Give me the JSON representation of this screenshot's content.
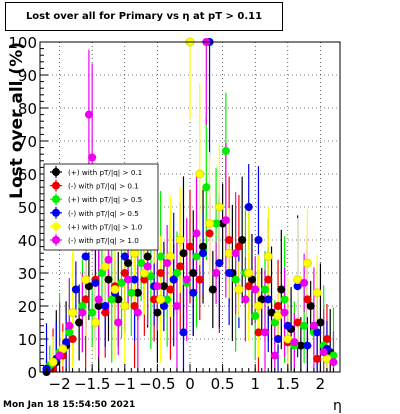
{
  "chart_data": {
    "type": "scatter",
    "title": "Lost over all for Primary vs  η at pT > 0.11",
    "xlabel": "η",
    "ylabel": "Lost over all (%)",
    "xlim": [
      -2.3,
      2.3
    ],
    "ylim": [
      0,
      100
    ],
    "x_ticks": [
      -2,
      -1.5,
      -1,
      -0.5,
      0,
      0.5,
      1,
      1.5,
      2
    ],
    "x_tick_labels": [
      "−2",
      "−1.5",
      "−1",
      "−0.5",
      "0",
      "0.5",
      "1",
      "1.5",
      "2"
    ],
    "y_ticks": [
      0,
      10,
      20,
      30,
      40,
      50,
      60,
      70,
      80,
      90,
      100
    ],
    "grid": true,
    "legend_position": "left-middle",
    "series": [
      {
        "name": "(+) with pT/|q| > 0.1",
        "color": "#000000",
        "points": [
          [
            -2.2,
            0
          ],
          [
            -2.05,
            3
          ],
          [
            -1.9,
            8
          ],
          [
            -1.7,
            15
          ],
          [
            -1.55,
            26
          ],
          [
            -1.4,
            20
          ],
          [
            -1.25,
            28
          ],
          [
            -1.1,
            22
          ],
          [
            -0.95,
            33
          ],
          [
            -0.8,
            24
          ],
          [
            -0.65,
            35
          ],
          [
            -0.5,
            18
          ],
          [
            -0.4,
            26
          ],
          [
            -0.25,
            28
          ],
          [
            -0.1,
            36
          ],
          [
            0.05,
            30
          ],
          [
            0.2,
            38
          ],
          [
            0.35,
            25
          ],
          [
            0.5,
            45
          ],
          [
            0.65,
            30
          ],
          [
            0.8,
            40
          ],
          [
            0.95,
            28
          ],
          [
            1.1,
            22
          ],
          [
            1.25,
            18
          ],
          [
            1.4,
            25
          ],
          [
            1.55,
            13
          ],
          [
            1.7,
            8
          ],
          [
            1.85,
            20
          ],
          [
            2.0,
            15
          ],
          [
            2.15,
            6
          ]
        ]
      },
      {
        "name": "(-) with pT/|q| > 0.1",
        "color": "#ee0000",
        "points": [
          [
            -2.1,
            1
          ],
          [
            -1.95,
            5
          ],
          [
            -1.8,
            10
          ],
          [
            -1.6,
            22
          ],
          [
            -1.45,
            28
          ],
          [
            -1.3,
            18
          ],
          [
            -1.15,
            26
          ],
          [
            -1.0,
            30
          ],
          [
            -0.85,
            20
          ],
          [
            -0.7,
            28
          ],
          [
            -0.55,
            22
          ],
          [
            -0.45,
            30
          ],
          [
            -0.3,
            25
          ],
          [
            -0.15,
            32
          ],
          [
            0.0,
            38
          ],
          [
            0.15,
            28
          ],
          [
            0.3,
            42
          ],
          [
            0.45,
            33
          ],
          [
            0.6,
            40
          ],
          [
            0.75,
            38
          ],
          [
            0.9,
            26
          ],
          [
            1.05,
            12
          ],
          [
            1.2,
            28
          ],
          [
            1.35,
            20
          ],
          [
            1.5,
            9
          ],
          [
            1.65,
            15
          ],
          [
            1.8,
            22
          ],
          [
            1.95,
            4
          ],
          [
            2.1,
            10
          ]
        ]
      },
      {
        "name": "(+) with pT/|q| > 0.5",
        "color": "#00ee00",
        "points": [
          [
            -2.15,
            2
          ],
          [
            -2.0,
            6
          ],
          [
            -1.85,
            12
          ],
          [
            -1.65,
            20
          ],
          [
            -1.5,
            18
          ],
          [
            -1.35,
            30
          ],
          [
            -1.2,
            22
          ],
          [
            -1.05,
            27
          ],
          [
            -0.9,
            24
          ],
          [
            -0.75,
            33
          ],
          [
            -0.6,
            29
          ],
          [
            -0.45,
            35
          ],
          [
            -0.35,
            22
          ],
          [
            -0.2,
            30
          ],
          [
            -0.05,
            27
          ],
          [
            0.1,
            35
          ],
          [
            0.25,
            56
          ],
          [
            0.4,
            45
          ],
          [
            0.55,
            67
          ],
          [
            0.7,
            28
          ],
          [
            0.85,
            30
          ],
          [
            1.0,
            17
          ],
          [
            1.15,
            25
          ],
          [
            1.3,
            15
          ],
          [
            1.45,
            22
          ],
          [
            1.6,
            8
          ],
          [
            1.75,
            14
          ],
          [
            1.9,
            12
          ],
          [
            2.05,
            8
          ],
          [
            2.2,
            5
          ]
        ]
      },
      {
        "name": "(-) with pT/|q| > 0.5",
        "color": "#0000ee",
        "points": [
          [
            -2.2,
            1
          ],
          [
            -2.05,
            4
          ],
          [
            -1.9,
            9
          ],
          [
            -1.75,
            25
          ],
          [
            -1.6,
            35
          ],
          [
            -1.45,
            27
          ],
          [
            -1.3,
            20
          ],
          [
            -1.15,
            24
          ],
          [
            -1.0,
            35
          ],
          [
            -0.85,
            28
          ],
          [
            -0.7,
            40
          ],
          [
            -0.55,
            26
          ],
          [
            -0.4,
            20
          ],
          [
            -0.25,
            28
          ],
          [
            -0.1,
            12
          ],
          [
            0.05,
            24
          ],
          [
            0.2,
            36
          ],
          [
            0.3,
            100
          ],
          [
            0.45,
            33
          ],
          [
            0.6,
            30
          ],
          [
            0.75,
            25
          ],
          [
            0.9,
            50
          ],
          [
            1.05,
            40
          ],
          [
            1.2,
            22
          ],
          [
            1.35,
            10
          ],
          [
            1.5,
            14
          ],
          [
            1.65,
            26
          ],
          [
            1.8,
            8
          ],
          [
            1.95,
            12
          ],
          [
            2.1,
            7
          ]
        ]
      },
      {
        "name": "(+) with pT/|q| > 1.0",
        "color": "#ffff00",
        "points": [
          [
            -2.1,
            3
          ],
          [
            -1.95,
            7
          ],
          [
            -1.8,
            18
          ],
          [
            -1.6,
            28
          ],
          [
            -1.45,
            15
          ],
          [
            -1.3,
            32
          ],
          [
            -1.15,
            25
          ],
          [
            -1.0,
            20
          ],
          [
            -0.85,
            36
          ],
          [
            -0.7,
            30
          ],
          [
            -0.55,
            45
          ],
          [
            -0.45,
            22
          ],
          [
            -0.3,
            35
          ],
          [
            -0.15,
            40
          ],
          [
            0.0,
            100
          ],
          [
            0.15,
            60
          ],
          [
            0.3,
            45
          ],
          [
            0.45,
            50
          ],
          [
            0.6,
            36
          ],
          [
            0.75,
            25
          ],
          [
            0.9,
            30
          ],
          [
            1.05,
            20
          ],
          [
            1.2,
            35
          ],
          [
            1.35,
            17
          ],
          [
            1.5,
            10
          ],
          [
            1.65,
            28
          ],
          [
            1.8,
            33
          ],
          [
            1.95,
            24
          ],
          [
            2.1,
            4
          ]
        ]
      },
      {
        "name": "(-) with pT/|q| > 1.0",
        "color": "#ee00ee",
        "points": [
          [
            -2.0,
            5
          ],
          [
            -1.85,
            14
          ],
          [
            -1.65,
            18
          ],
          [
            -1.55,
            78
          ],
          [
            -1.5,
            65
          ],
          [
            -1.4,
            22
          ],
          [
            -1.25,
            34
          ],
          [
            -1.1,
            15
          ],
          [
            -0.95,
            28
          ],
          [
            -0.8,
            18
          ],
          [
            -0.65,
            32
          ],
          [
            -0.5,
            26
          ],
          [
            -0.35,
            33
          ],
          [
            -0.2,
            20
          ],
          [
            -0.05,
            28
          ],
          [
            0.1,
            42
          ],
          [
            0.25,
            100
          ],
          [
            0.4,
            30
          ],
          [
            0.55,
            46
          ],
          [
            0.7,
            36
          ],
          [
            0.85,
            22
          ],
          [
            1.0,
            25
          ],
          [
            1.15,
            12
          ],
          [
            1.3,
            5
          ],
          [
            1.45,
            18
          ],
          [
            1.6,
            9
          ],
          [
            1.75,
            27
          ],
          [
            1.9,
            14
          ],
          [
            2.05,
            6
          ],
          [
            2.2,
            3
          ]
        ]
      }
    ]
  },
  "timestamp": "Mon Jan 18 15:54:50 2021"
}
